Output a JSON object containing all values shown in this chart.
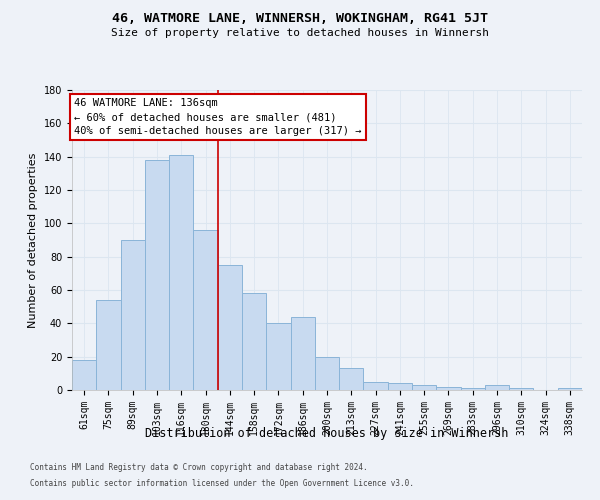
{
  "title": "46, WATMORE LANE, WINNERSH, WOKINGHAM, RG41 5JT",
  "subtitle": "Size of property relative to detached houses in Winnersh",
  "xlabel": "Distribution of detached houses by size in Winnersh",
  "ylabel": "Number of detached properties",
  "categories": [
    "61sqm",
    "75sqm",
    "89sqm",
    "103sqm",
    "116sqm",
    "130sqm",
    "144sqm",
    "158sqm",
    "172sqm",
    "186sqm",
    "200sqm",
    "213sqm",
    "227sqm",
    "241sqm",
    "255sqm",
    "269sqm",
    "283sqm",
    "296sqm",
    "310sqm",
    "324sqm",
    "338sqm"
  ],
  "values": [
    18,
    54,
    90,
    138,
    141,
    96,
    75,
    58,
    40,
    44,
    20,
    13,
    5,
    4,
    3,
    2,
    1,
    3,
    1,
    0,
    1
  ],
  "bar_color": "#c8daf0",
  "bar_edge_color": "#8ab4d8",
  "grid_color": "#dce6f0",
  "background_color": "#eef2f8",
  "property_line_x": 5.5,
  "property_label": "46 WATMORE LANE: 136sqm",
  "annotation_line1": "← 60% of detached houses are smaller (481)",
  "annotation_line2": "40% of semi-detached houses are larger (317) →",
  "annotation_box_color": "#ffffff",
  "annotation_box_edge": "#cc0000",
  "vline_color": "#cc0000",
  "footer_line1": "Contains HM Land Registry data © Crown copyright and database right 2024.",
  "footer_line2": "Contains public sector information licensed under the Open Government Licence v3.0.",
  "ylim": [
    0,
    180
  ],
  "yticks": [
    0,
    20,
    40,
    60,
    80,
    100,
    120,
    140,
    160,
    180
  ],
  "title_fontsize": 9.5,
  "subtitle_fontsize": 8,
  "ylabel_fontsize": 8,
  "xlabel_fontsize": 8.5,
  "tick_fontsize": 7,
  "annot_fontsize": 7.5
}
